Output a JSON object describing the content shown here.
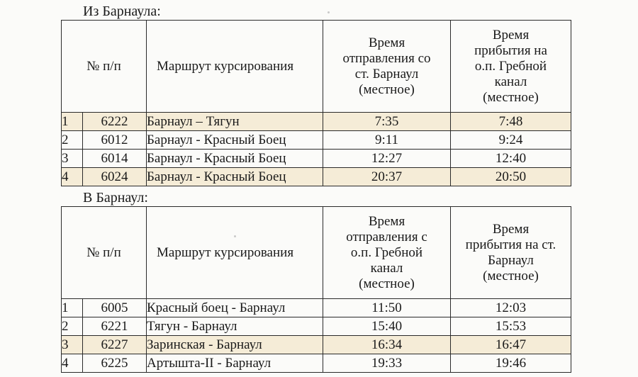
{
  "from_barnaul": {
    "title": "Из Барнаула:",
    "headers": {
      "num": "№ п/п",
      "route": "Маршрут курсирования",
      "depart": [
        "Время",
        "отправления со",
        "ст. Барнаул",
        "(местное)"
      ],
      "arrive": [
        "Время",
        "прибытия на",
        "о.п. Гребной",
        "канал",
        "(местное)"
      ]
    },
    "rows": [
      {
        "num": "1",
        "train": "6222",
        "route": "Барнаул – Тягун",
        "depart": "7:35",
        "arrive": "7:48"
      },
      {
        "num": "2",
        "train": "6012",
        "route": "Барнаул -  Красный Боец",
        "depart": "9:11",
        "arrive": "9:24"
      },
      {
        "num": "3",
        "train": "6014",
        "route": "Барнаул -  Красный Боец",
        "depart": "12:27",
        "arrive": "12:40"
      },
      {
        "num": "4",
        "train": "6024",
        "route": "Барнаул -  Красный Боец",
        "depart": "20:37",
        "arrive": "20:50"
      }
    ]
  },
  "to_barnaul": {
    "title": "В Барнаул:",
    "headers": {
      "num": "№ п/п",
      "route": "Маршрут курсирования",
      "depart": [
        "Время",
        "отправления с",
        "о.п. Гребной",
        "канал",
        "(местное)"
      ],
      "arrive": [
        "Время",
        "прибытия на ст.",
        "Барнаул",
        "(местное)"
      ]
    },
    "rows": [
      {
        "num": "1",
        "train": "6005",
        "route": "Красный боец - Барнаул",
        "depart": "11:50",
        "arrive": "12:03"
      },
      {
        "num": "2",
        "train": "6221",
        "route": "Тягун - Барнаул",
        "depart": "15:40",
        "arrive": "15:53"
      },
      {
        "num": "3",
        "train": "6227",
        "route": "Заринская - Барнаул",
        "depart": "16:34",
        "arrive": "16:47"
      },
      {
        "num": "4",
        "train": "6225",
        "route": "Артышта-II - Барнаул",
        "depart": "19:33",
        "arrive": "19:46"
      }
    ]
  },
  "colors": {
    "highlight_row": "#f5ecd7",
    "border": "#2a2a2a"
  }
}
